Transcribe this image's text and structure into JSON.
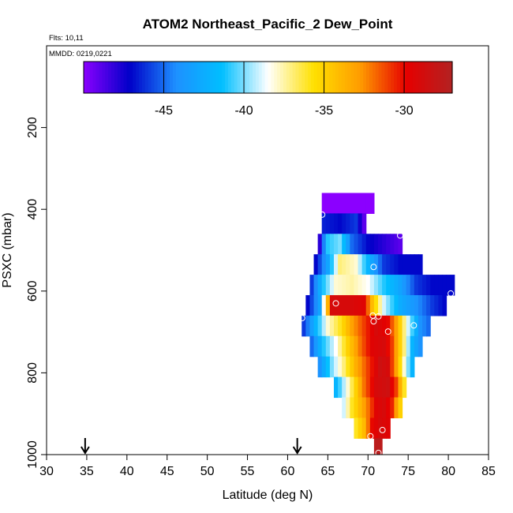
{
  "chart_data": {
    "type": "heatmap",
    "title": "ATOM2 Northeast_Pacific_2 Dew_Point",
    "flights_note": "Flts: 10,11",
    "date_note": "MMDD: 0219,0221",
    "xlabel": "Latitude (deg N)",
    "ylabel": "PSXC (mbar)",
    "xlim": [
      30,
      85
    ],
    "ylim": [
      1000,
      0
    ],
    "x_ticks": [
      30,
      35,
      40,
      45,
      50,
      55,
      60,
      65,
      70,
      75,
      80,
      85
    ],
    "y_ticks": [
      200,
      400,
      600,
      800,
      1000
    ],
    "colorbar": {
      "vmin": -50,
      "vmax": -27,
      "ticks": [
        -45,
        -40,
        -35,
        -30
      ],
      "stops": [
        "#8b00ff",
        "#0000c8",
        "#1e90ff",
        "#00bfff",
        "#ffffff",
        "#ffe000",
        "#ff9c00",
        "#e60000",
        "#b22222"
      ]
    },
    "bin_width_deg": 0.5,
    "layers": [
      {
        "p0": 360,
        "p1": 410,
        "points": [
          [
            64.5,
            -50
          ],
          [
            70.5,
            -50
          ]
        ]
      },
      {
        "p0": 410,
        "p1": 460,
        "points": [
          [
            64.5,
            -46.5
          ],
          [
            66.5,
            -47
          ],
          [
            68.5,
            -46
          ],
          [
            69.5,
            -49
          ]
        ]
      },
      {
        "p0": 460,
        "p1": 510,
        "points": [
          [
            64.0,
            -48
          ],
          [
            65.0,
            -41
          ],
          [
            66.5,
            -40
          ],
          [
            68.0,
            -45
          ],
          [
            70.0,
            -47
          ],
          [
            72.0,
            -48
          ],
          [
            74.0,
            -49
          ]
        ]
      },
      {
        "p0": 510,
        "p1": 560,
        "points": [
          [
            63.5,
            -47
          ],
          [
            65.0,
            -43
          ],
          [
            66.5,
            -37
          ],
          [
            68.5,
            -38
          ],
          [
            70.0,
            -42
          ],
          [
            72.0,
            -46
          ],
          [
            74.0,
            -47
          ],
          [
            76.5,
            -47
          ]
        ]
      },
      {
        "p0": 560,
        "p1": 610,
        "points": [
          [
            63.0,
            -46
          ],
          [
            64.5,
            -41
          ],
          [
            66.0,
            -38
          ],
          [
            68.0,
            -37.5
          ],
          [
            70.0,
            -38.5
          ],
          [
            72.0,
            -41
          ],
          [
            74.0,
            -43
          ],
          [
            76.0,
            -46
          ],
          [
            78.0,
            -47
          ],
          [
            80.5,
            -47
          ]
        ]
      },
      {
        "p0": 610,
        "p1": 660,
        "points": [
          [
            62.5,
            -47
          ],
          [
            64.0,
            -43
          ],
          [
            65.5,
            -29
          ],
          [
            67.5,
            -29
          ],
          [
            69.5,
            -29.5
          ],
          [
            70.5,
            -34
          ],
          [
            72.0,
            -39
          ],
          [
            74.0,
            -42.5
          ],
          [
            76.0,
            -44
          ],
          [
            78.0,
            -46
          ],
          [
            79.5,
            -47
          ]
        ]
      },
      {
        "p0": 660,
        "p1": 710,
        "points": [
          [
            62.0,
            -46
          ],
          [
            63.5,
            -42
          ],
          [
            65.0,
            -38
          ],
          [
            66.5,
            -36
          ],
          [
            68.0,
            -33
          ],
          [
            69.5,
            -31
          ],
          [
            71.0,
            -29
          ],
          [
            72.5,
            -30
          ],
          [
            73.5,
            -33
          ],
          [
            75.0,
            -39
          ],
          [
            76.5,
            -44
          ],
          [
            77.5,
            -45
          ]
        ]
      },
      {
        "p0": 710,
        "p1": 760,
        "points": [
          [
            63.0,
            -45
          ],
          [
            64.5,
            -41
          ],
          [
            66.0,
            -38.5
          ],
          [
            67.5,
            -35
          ],
          [
            69.0,
            -32
          ],
          [
            70.5,
            -29.5
          ],
          [
            72.0,
            -29
          ],
          [
            73.0,
            -31
          ],
          [
            74.5,
            -37
          ],
          [
            75.5,
            -42
          ],
          [
            76.5,
            -44
          ]
        ]
      },
      {
        "p0": 760,
        "p1": 810,
        "points": [
          [
            64.0,
            -44
          ],
          [
            65.5,
            -40
          ],
          [
            67.0,
            -37
          ],
          [
            68.5,
            -33.5
          ],
          [
            70.0,
            -31
          ],
          [
            71.5,
            -28.5
          ],
          [
            72.5,
            -29
          ],
          [
            73.5,
            -33
          ],
          [
            74.5,
            -38
          ],
          [
            75.5,
            -42
          ]
        ]
      },
      {
        "p0": 810,
        "p1": 860,
        "points": [
          [
            66.0,
            -42
          ],
          [
            67.5,
            -38
          ],
          [
            68.5,
            -35
          ],
          [
            69.5,
            -32
          ],
          [
            71.0,
            -29
          ],
          [
            72.5,
            -28.5
          ],
          [
            73.5,
            -31
          ],
          [
            74.5,
            -36
          ]
        ]
      },
      {
        "p0": 860,
        "p1": 910,
        "points": [
          [
            67.0,
            -39
          ],
          [
            68.0,
            -36
          ],
          [
            69.0,
            -34
          ],
          [
            70.0,
            -32
          ],
          [
            71.0,
            -29.5
          ],
          [
            72.0,
            -29
          ],
          [
            73.0,
            -30.5
          ],
          [
            74.0,
            -35
          ]
        ]
      },
      {
        "p0": 910,
        "p1": 960,
        "points": [
          [
            68.5,
            -36
          ],
          [
            69.5,
            -34
          ],
          [
            70.5,
            -30
          ],
          [
            71.5,
            -29
          ],
          [
            72.5,
            -29.5
          ]
        ]
      },
      {
        "p0": 960,
        "p1": 1000,
        "points": [
          [
            71.0,
            -27.5
          ],
          [
            71.5,
            -27.5
          ]
        ]
      }
    ],
    "circles": [
      [
        64.3,
        413
      ],
      [
        74.0,
        464
      ],
      [
        70.7,
        541
      ],
      [
        80.3,
        606
      ],
      [
        61.8,
        666
      ],
      [
        66.0,
        630
      ],
      [
        70.6,
        660
      ],
      [
        71.3,
        662
      ],
      [
        70.7,
        674
      ],
      [
        72.5,
        699
      ],
      [
        75.7,
        684
      ],
      [
        71.8,
        940
      ],
      [
        70.3,
        955
      ],
      [
        71.3,
        996
      ]
    ],
    "arrows_latitude": [
      34.8,
      61.2
    ]
  }
}
